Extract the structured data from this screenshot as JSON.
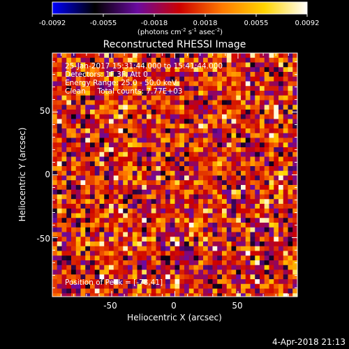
{
  "colorbar": {
    "ticks": [
      "-0.0092",
      "-0.0055",
      "-0.0018",
      "0.0018",
      "0.0055",
      "0.0092"
    ],
    "units_prefix": "(photons cm",
    "units_exp1": "-2",
    "units_mid": " s",
    "units_exp2": "-1",
    "units_mid2": " asec",
    "units_exp3": "-2",
    "units_suffix": ")"
  },
  "chart_data": {
    "type": "heatmap",
    "title": "Reconstructed RHESSI Image",
    "xlabel": "Heliocentric X (arcsec)",
    "ylabel": "Heliocentric Y (arcsec)",
    "xlim": [
      -97,
      97
    ],
    "ylim": [
      -97,
      97
    ],
    "xticks": [
      "-50",
      "0",
      "50"
    ],
    "yticks": [
      "50",
      "0",
      "-50"
    ],
    "color_range": [
      -0.0092,
      0.0092
    ],
    "colormap": [
      "#0000ff",
      "#000000",
      "#6a0aa0",
      "#cc0000",
      "#ff7a00",
      "#ffd500",
      "#ffffff"
    ],
    "annotations": [
      "25-Jan-2017 15:31:44.000 to 15:41:44.000",
      "Detectors: 1F 3F, Att 0",
      "Energy Range: 25.0 - 50.0 keV",
      "Clean     Total counts: 7.77E+03"
    ],
    "peak_label": "Position of Peak = [-78,41]"
  },
  "footer": {
    "timestamp": "4-Apr-2018 21:13"
  }
}
